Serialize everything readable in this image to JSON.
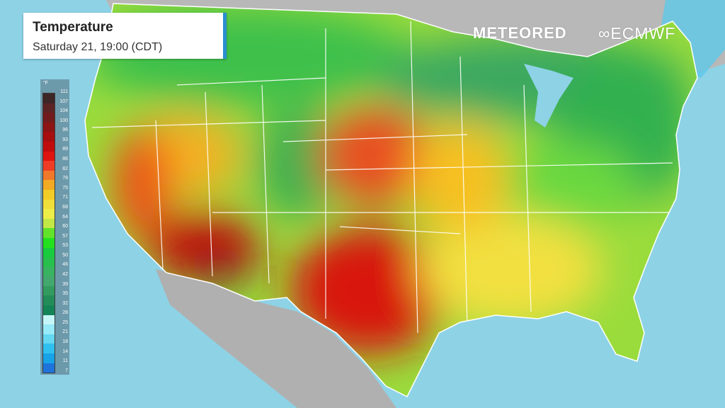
{
  "header": {
    "title": "Temperature",
    "subtitle": "Saturday 21, 19:00 (CDT)"
  },
  "logos": {
    "meteored": "METEORED",
    "ecmwf": "ECMWF"
  },
  "legend": {
    "unit": "°F",
    "ticks": [
      "111",
      "107",
      "104",
      "100",
      "96",
      "93",
      "89",
      "86",
      "82",
      "78",
      "75",
      "71",
      "68",
      "64",
      "60",
      "57",
      "53",
      "50",
      "46",
      "42",
      "39",
      "35",
      "32",
      "28",
      "25",
      "21",
      "18",
      "14",
      "11",
      "7"
    ],
    "colors": [
      "#3a1c1c",
      "#5a1a1a",
      "#701212",
      "#8c0a0a",
      "#a80404",
      "#c40202",
      "#e40a04",
      "#f4361a",
      "#f67420",
      "#f8a818",
      "#f8cc1c",
      "#f6e030",
      "#f4f040",
      "#c4ea3c",
      "#60e420",
      "#1ee214",
      "#12cc34",
      "#22c044",
      "#34b25a",
      "#3ea668",
      "#2e9a58",
      "#1e8a52",
      "#0e8050",
      "#c8f8f8",
      "#98ecf8",
      "#62d8f2",
      "#2cc0f0",
      "#12a0e8",
      "#1a70dc",
      "#1650c0"
    ]
  },
  "map": {
    "ocean_color": "#8ed2e6",
    "land_color": "#b4b4b4",
    "border_color": "#ffffff"
  }
}
